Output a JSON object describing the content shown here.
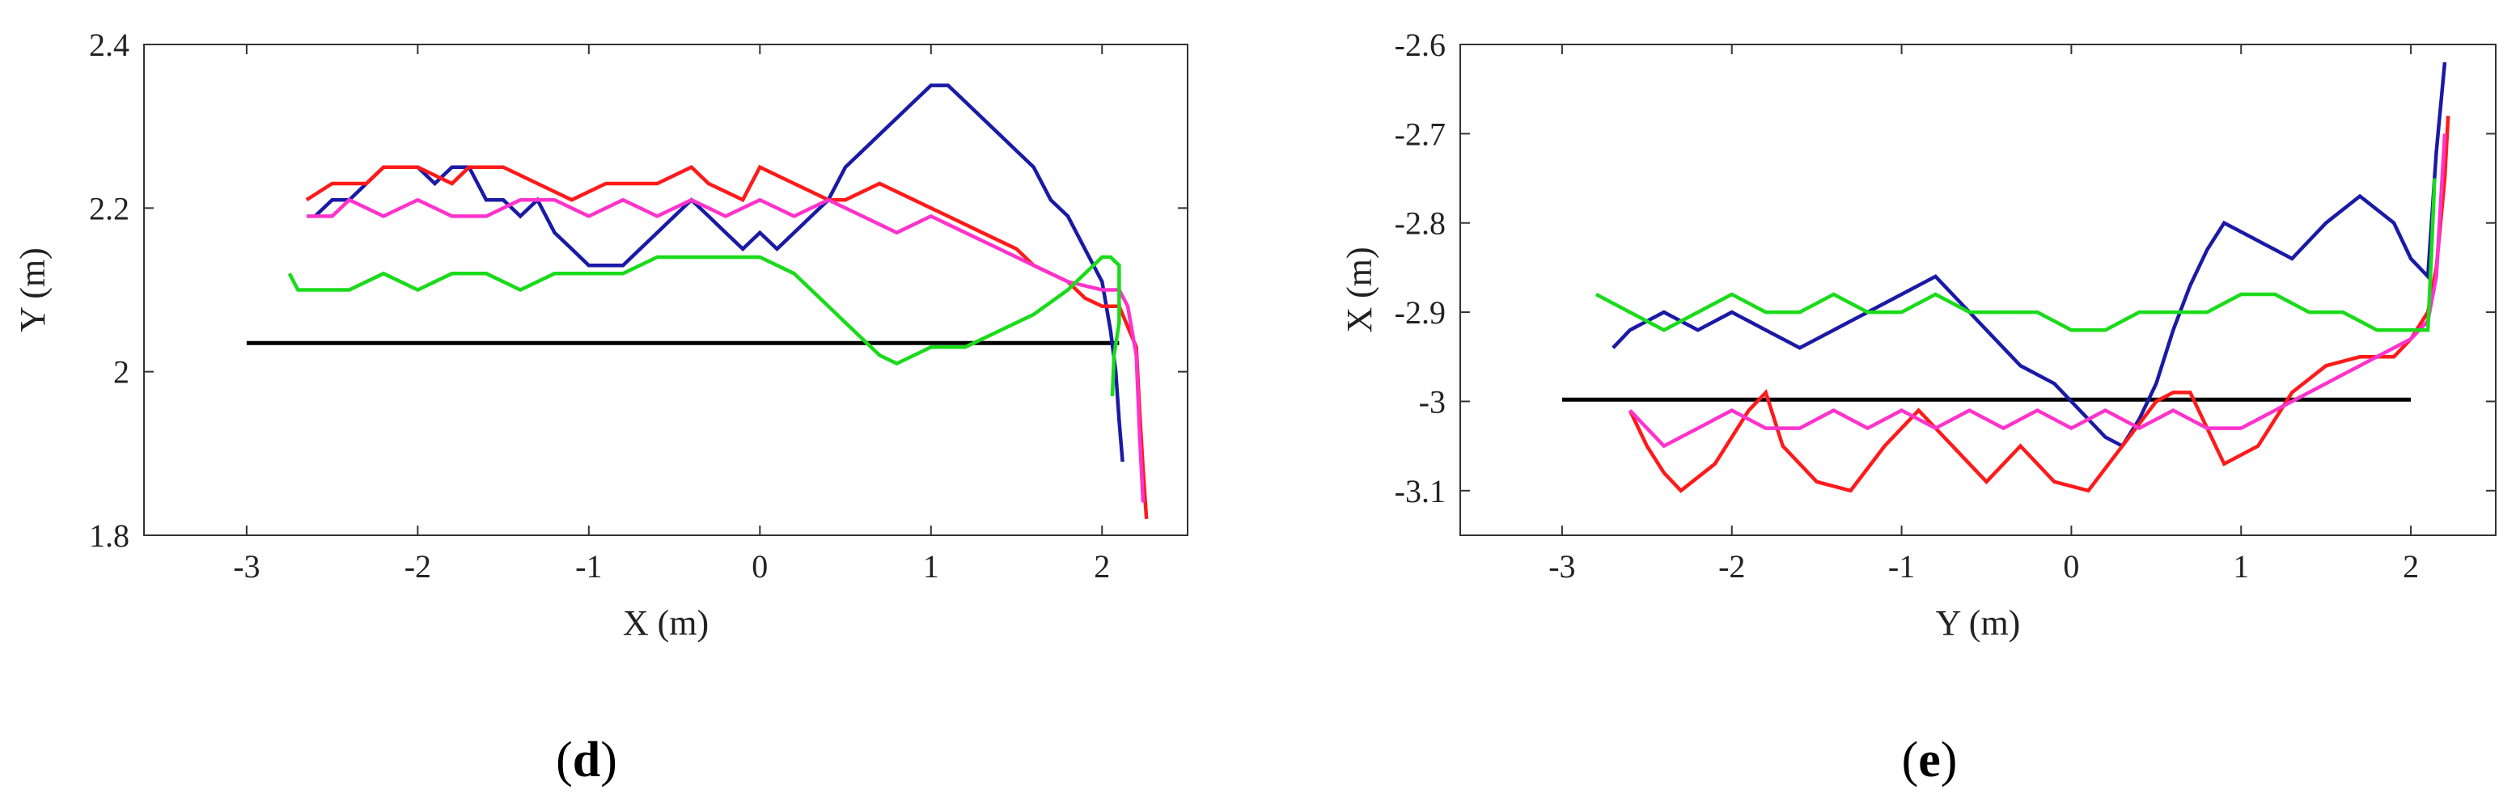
{
  "chart_data": [
    {
      "type": "line",
      "caption": "(d)",
      "caption_letter": "d",
      "xlabel": "X (m)",
      "ylabel": "Y (m)",
      "xlim": [
        -3.6,
        2.5
      ],
      "ylim": [
        1.8,
        2.4
      ],
      "xticks": [
        -3,
        -2,
        -1,
        0,
        1,
        2
      ],
      "yticks": [
        1.8,
        2,
        2.2,
        2.4
      ],
      "xtick_labels": [
        "-3",
        "-2",
        "-1",
        "0",
        "1",
        "2"
      ],
      "ytick_labels": [
        "1.8",
        "2",
        "2.2",
        "2.4"
      ],
      "grid": false,
      "legend": "none",
      "series": [
        {
          "color": "#000000",
          "x": [
            -3.0,
            2.1
          ],
          "y": [
            2.035,
            2.035
          ]
        },
        {
          "color": "#1a1aa6",
          "x": [
            -2.6,
            -2.5,
            -2.4,
            -2.3,
            -2.2,
            -2.1,
            -2.0,
            -1.9,
            -1.8,
            -1.7,
            -1.6,
            -1.5,
            -1.4,
            -1.3,
            -1.2,
            -1.1,
            -1.0,
            -0.9,
            -0.8,
            -0.7,
            -0.6,
            -0.5,
            -0.4,
            -0.3,
            -0.2,
            -0.1,
            0.0,
            0.1,
            0.2,
            0.3,
            0.4,
            0.5,
            0.6,
            0.7,
            0.8,
            0.9,
            1.0,
            1.1,
            1.2,
            1.3,
            1.4,
            1.5,
            1.6,
            1.7,
            1.8,
            1.9,
            2.0,
            2.05,
            2.08,
            2.1,
            2.12
          ],
          "y": [
            2.19,
            2.21,
            2.21,
            2.23,
            2.25,
            2.25,
            2.25,
            2.23,
            2.25,
            2.25,
            2.21,
            2.21,
            2.19,
            2.21,
            2.17,
            2.15,
            2.13,
            2.13,
            2.13,
            2.15,
            2.17,
            2.19,
            2.21,
            2.19,
            2.17,
            2.15,
            2.17,
            2.15,
            2.17,
            2.19,
            2.21,
            2.25,
            2.27,
            2.29,
            2.31,
            2.33,
            2.35,
            2.35,
            2.33,
            2.31,
            2.29,
            2.27,
            2.25,
            2.21,
            2.19,
            2.15,
            2.11,
            2.05,
            2.0,
            1.94,
            1.89
          ]
        },
        {
          "color": "#ff1a1a",
          "x": [
            -2.65,
            -2.5,
            -2.3,
            -2.2,
            -2.0,
            -1.8,
            -1.7,
            -1.5,
            -1.3,
            -1.1,
            -0.9,
            -0.8,
            -0.6,
            -0.4,
            -0.3,
            -0.1,
            0.0,
            0.2,
            0.4,
            0.5,
            0.7,
            0.9,
            1.1,
            1.3,
            1.5,
            1.6,
            1.8,
            1.9,
            2.0,
            2.1,
            2.2,
            2.22,
            2.24,
            2.26
          ],
          "y": [
            2.21,
            2.23,
            2.23,
            2.25,
            2.25,
            2.23,
            2.25,
            2.25,
            2.23,
            2.21,
            2.23,
            2.23,
            2.23,
            2.25,
            2.23,
            2.21,
            2.25,
            2.23,
            2.21,
            2.21,
            2.23,
            2.21,
            2.19,
            2.17,
            2.15,
            2.13,
            2.11,
            2.09,
            2.08,
            2.08,
            2.03,
            1.95,
            1.88,
            1.82
          ]
        },
        {
          "color": "#ff33cc",
          "x": [
            -2.65,
            -2.5,
            -2.4,
            -2.2,
            -2.0,
            -1.8,
            -1.6,
            -1.4,
            -1.2,
            -1.0,
            -0.8,
            -0.6,
            -0.4,
            -0.2,
            0.0,
            0.2,
            0.4,
            0.6,
            0.8,
            1.0,
            1.2,
            1.4,
            1.6,
            1.8,
            2.0,
            2.1,
            2.15,
            2.2,
            2.22,
            2.24
          ],
          "y": [
            2.19,
            2.19,
            2.21,
            2.19,
            2.21,
            2.19,
            2.19,
            2.21,
            2.21,
            2.19,
            2.21,
            2.19,
            2.21,
            2.19,
            2.21,
            2.19,
            2.21,
            2.19,
            2.17,
            2.19,
            2.17,
            2.15,
            2.13,
            2.11,
            2.1,
            2.1,
            2.08,
            2.02,
            1.92,
            1.84
          ]
        },
        {
          "color": "#1adb1a",
          "x": [
            -2.75,
            -2.7,
            -2.4,
            -2.2,
            -2.0,
            -1.8,
            -1.6,
            -1.4,
            -1.2,
            -1.0,
            -0.8,
            -0.6,
            -0.4,
            -0.2,
            0.0,
            0.2,
            0.4,
            0.5,
            0.6,
            0.7,
            0.8,
            1.0,
            1.2,
            1.4,
            1.6,
            1.8,
            1.9,
            2.0,
            2.05,
            2.1,
            2.1,
            2.07,
            2.06
          ],
          "y": [
            2.12,
            2.1,
            2.1,
            2.12,
            2.1,
            2.12,
            2.12,
            2.1,
            2.12,
            2.12,
            2.12,
            2.14,
            2.14,
            2.14,
            2.14,
            2.12,
            2.08,
            2.06,
            2.04,
            2.02,
            2.01,
            2.03,
            2.03,
            2.05,
            2.07,
            2.1,
            2.12,
            2.14,
            2.14,
            2.13,
            2.06,
            2.02,
            1.97
          ]
        }
      ]
    },
    {
      "type": "line",
      "caption": "(e)",
      "caption_letter": "e",
      "xlabel": "Y (m)",
      "ylabel": "X (m)",
      "xlim": [
        -3.6,
        2.5
      ],
      "ylim": [
        -3.15,
        -2.6
      ],
      "xticks": [
        -3,
        -2,
        -1,
        0,
        1,
        2
      ],
      "yticks": [
        -3.1,
        -3,
        -2.9,
        -2.8,
        -2.7,
        -2.6
      ],
      "xtick_labels": [
        "-3",
        "-2",
        "-1",
        "0",
        "1",
        "2"
      ],
      "ytick_labels": [
        "-3.1",
        "-3",
        "-2.9",
        "-2.8",
        "-2.7",
        "-2.6"
      ],
      "grid": false,
      "legend": "none",
      "series": [
        {
          "color": "#000000",
          "x": [
            -3.0,
            2.0
          ],
          "y": [
            -2.998,
            -2.998
          ]
        },
        {
          "color": "#1a1aa6",
          "x": [
            -2.7,
            -2.6,
            -2.4,
            -2.2,
            -2.0,
            -1.8,
            -1.6,
            -1.4,
            -1.2,
            -1.0,
            -0.8,
            -0.7,
            -0.5,
            -0.3,
            -0.1,
            0.0,
            0.1,
            0.2,
            0.3,
            0.4,
            0.5,
            0.6,
            0.7,
            0.8,
            0.9,
            1.1,
            1.3,
            1.5,
            1.7,
            1.9,
            2.0,
            2.1,
            2.15,
            2.2
          ],
          "y": [
            -2.94,
            -2.92,
            -2.9,
            -2.92,
            -2.9,
            -2.92,
            -2.94,
            -2.92,
            -2.9,
            -2.88,
            -2.86,
            -2.88,
            -2.92,
            -2.96,
            -2.98,
            -3.0,
            -3.02,
            -3.04,
            -3.05,
            -3.02,
            -2.98,
            -2.92,
            -2.87,
            -2.83,
            -2.8,
            -2.82,
            -2.84,
            -2.8,
            -2.77,
            -2.8,
            -2.84,
            -2.86,
            -2.72,
            -2.62
          ]
        },
        {
          "color": "#ff1a1a",
          "x": [
            -2.6,
            -2.5,
            -2.4,
            -2.3,
            -2.1,
            -1.9,
            -1.8,
            -1.7,
            -1.5,
            -1.3,
            -1.1,
            -0.9,
            -0.7,
            -0.5,
            -0.3,
            -0.1,
            0.1,
            0.3,
            0.5,
            0.6,
            0.7,
            0.8,
            0.9,
            1.1,
            1.3,
            1.5,
            1.7,
            1.9,
            2.0,
            2.1,
            2.15,
            2.2,
            2.22
          ],
          "y": [
            -3.01,
            -3.05,
            -3.08,
            -3.1,
            -3.07,
            -3.01,
            -2.99,
            -3.05,
            -3.09,
            -3.1,
            -3.05,
            -3.01,
            -3.05,
            -3.09,
            -3.05,
            -3.09,
            -3.1,
            -3.05,
            -3.0,
            -2.99,
            -2.99,
            -3.03,
            -3.07,
            -3.05,
            -2.99,
            -2.96,
            -2.95,
            -2.95,
            -2.93,
            -2.9,
            -2.85,
            -2.75,
            -2.68
          ]
        },
        {
          "color": "#ff33cc",
          "x": [
            -2.6,
            -2.4,
            -2.2,
            -2.0,
            -1.8,
            -1.6,
            -1.4,
            -1.2,
            -1.0,
            -0.8,
            -0.6,
            -0.4,
            -0.2,
            0.0,
            0.2,
            0.4,
            0.6,
            0.8,
            1.0,
            1.2,
            1.4,
            1.6,
            1.8,
            2.0,
            2.1,
            2.15,
            2.2
          ],
          "y": [
            -3.01,
            -3.05,
            -3.03,
            -3.01,
            -3.03,
            -3.03,
            -3.01,
            -3.03,
            -3.01,
            -3.03,
            -3.01,
            -3.03,
            -3.01,
            -3.03,
            -3.01,
            -3.03,
            -3.01,
            -3.03,
            -3.03,
            -3.01,
            -2.99,
            -2.97,
            -2.95,
            -2.93,
            -2.91,
            -2.86,
            -2.7
          ]
        },
        {
          "color": "#1adb1a",
          "x": [
            -2.8,
            -2.6,
            -2.4,
            -2.2,
            -2.0,
            -1.8,
            -1.6,
            -1.4,
            -1.2,
            -1.0,
            -0.8,
            -0.6,
            -0.4,
            -0.2,
            0.0,
            0.2,
            0.4,
            0.6,
            0.8,
            1.0,
            1.2,
            1.4,
            1.6,
            1.8,
            2.0,
            2.1,
            2.12,
            2.14
          ],
          "y": [
            -2.88,
            -2.9,
            -2.92,
            -2.9,
            -2.88,
            -2.9,
            -2.9,
            -2.88,
            -2.9,
            -2.9,
            -2.88,
            -2.9,
            -2.9,
            -2.9,
            -2.92,
            -2.92,
            -2.9,
            -2.9,
            -2.9,
            -2.88,
            -2.88,
            -2.9,
            -2.9,
            -2.92,
            -2.92,
            -2.92,
            -2.84,
            -2.75
          ]
        }
      ]
    }
  ]
}
